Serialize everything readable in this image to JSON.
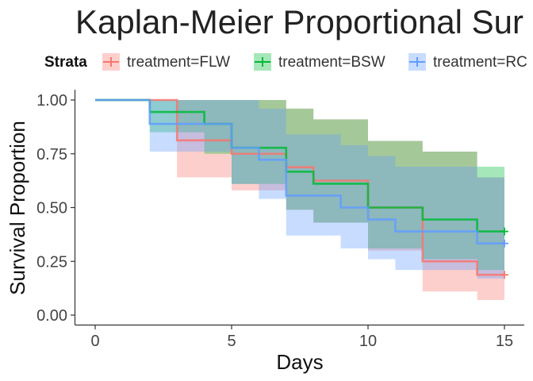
{
  "chart_data": {
    "type": "line",
    "title": "Kaplan-Meier Proportional Sur",
    "xlabel": "Days",
    "ylabel": "Survival Proportion",
    "xlim": [
      0,
      15
    ],
    "ylim": [
      0,
      1
    ],
    "x_ticks": [
      "0",
      "5",
      "10",
      "15"
    ],
    "y_ticks": [
      "0.00",
      "0.25",
      "0.50",
      "0.75",
      "1.00"
    ],
    "grid": false,
    "legend": {
      "position": "top",
      "title": "Strata",
      "entries": [
        "treatment=FLW",
        "treatment=BSW",
        "treatment=RC"
      ]
    },
    "series": [
      {
        "name": "treatment=FLW",
        "color": "#F8766D",
        "step_times": [
          0,
          3,
          5,
          7,
          8,
          10,
          12,
          14,
          15
        ],
        "survival": [
          1.0,
          0.8125,
          0.75,
          0.6875,
          0.625,
          0.5,
          0.25,
          0.1875,
          0.1875
        ],
        "lower_ci": [
          1.0,
          0.64,
          0.58,
          0.49,
          0.43,
          0.3,
          0.11,
          0.07,
          0.07
        ],
        "upper_ci": [
          1.0,
          1.0,
          1.0,
          0.96,
          0.91,
          0.81,
          0.76,
          0.64,
          0.64
        ]
      },
      {
        "name": "treatment=BSW",
        "color": "#00BA38",
        "step_times": [
          0,
          2,
          4,
          5,
          7,
          8,
          10,
          12,
          14,
          15
        ],
        "survival": [
          1.0,
          0.9444,
          0.8889,
          0.7778,
          0.6667,
          0.6111,
          0.5,
          0.4444,
          0.3889,
          0.3889
        ],
        "lower_ci": [
          1.0,
          0.85,
          0.75,
          0.61,
          0.49,
          0.43,
          0.31,
          0.26,
          0.21,
          0.21
        ],
        "upper_ci": [
          1.0,
          1.0,
          1.0,
          1.0,
          0.96,
          0.91,
          0.81,
          0.76,
          0.69,
          0.69
        ]
      },
      {
        "name": "treatment=RC",
        "color": "#619CFF",
        "step_times": [
          0,
          2,
          5,
          6,
          7,
          9,
          10,
          11,
          14,
          15
        ],
        "survival": [
          1.0,
          0.8889,
          0.7778,
          0.7222,
          0.5556,
          0.5,
          0.4444,
          0.3889,
          0.3333,
          0.3333
        ],
        "lower_ci": [
          1.0,
          0.76,
          0.61,
          0.54,
          0.37,
          0.31,
          0.26,
          0.21,
          0.17,
          0.17
        ],
        "upper_ci": [
          1.0,
          1.0,
          1.0,
          0.96,
          0.84,
          0.79,
          0.74,
          0.69,
          0.64,
          0.64
        ]
      }
    ]
  }
}
